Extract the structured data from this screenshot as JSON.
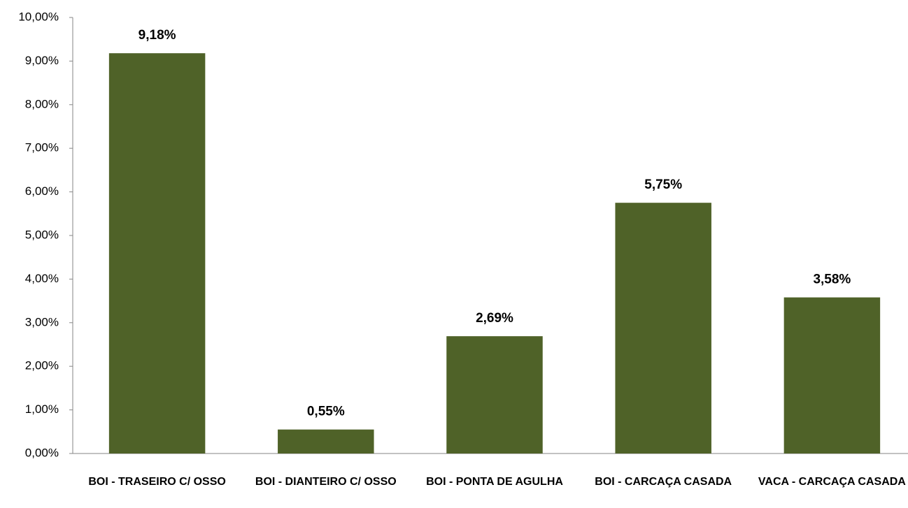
{
  "chart_data": {
    "type": "bar",
    "categories": [
      "BOI - TRASEIRO C/ OSSO",
      "BOI - DIANTEIRO C/ OSSO",
      "BOI - PONTA DE AGULHA",
      "BOI - CARCAÇA CASADA",
      "VACA - CARCAÇA CASADA"
    ],
    "values": [
      9.18,
      0.55,
      2.69,
      5.75,
      3.58
    ],
    "value_labels": [
      "9,18%",
      "0,55%",
      "2,69%",
      "5,75%",
      "3,58%"
    ],
    "color": "#4f6228",
    "ylim": [
      0,
      10
    ],
    "yticks": [
      {
        "value": 0,
        "label": "0,00%"
      },
      {
        "value": 1,
        "label": "1,00%"
      },
      {
        "value": 2,
        "label": "2,00%"
      },
      {
        "value": 3,
        "label": "3,00%"
      },
      {
        "value": 4,
        "label": "4,00%"
      },
      {
        "value": 5,
        "label": "5,00%"
      },
      {
        "value": 6,
        "label": "6,00%"
      },
      {
        "value": 7,
        "label": "7,00%"
      },
      {
        "value": 8,
        "label": "8,00%"
      },
      {
        "value": 9,
        "label": "9,00%"
      },
      {
        "value": 10,
        "label": "10,00%"
      }
    ],
    "grid": false
  }
}
